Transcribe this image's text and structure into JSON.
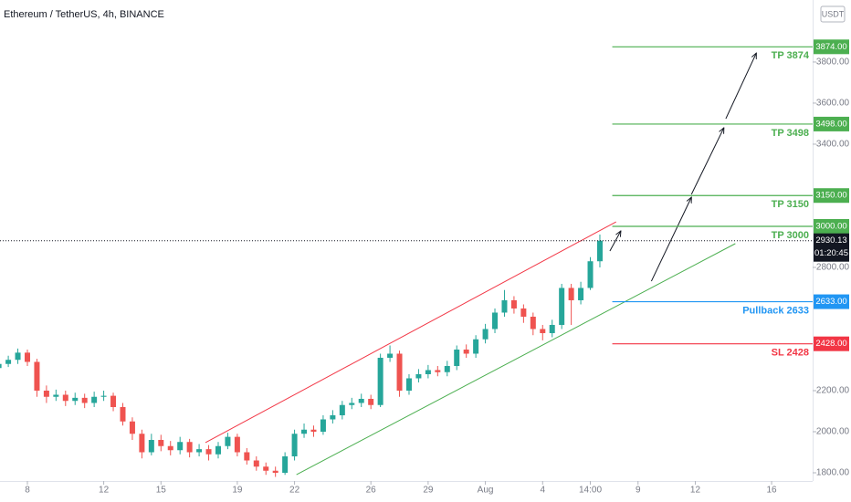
{
  "chart_data": {
    "type": "candlestick",
    "title": "Ethereum / TetherUS, 4h, BINANCE",
    "currency": "USDT",
    "up_color": "#26a69a",
    "down_color": "#ef5350",
    "xlim": [
      -2.87,
      82.3
    ],
    "ylim": [
      1760,
      4102
    ],
    "xticks": [
      {
        "value": 0,
        "label": "8"
      },
      {
        "value": 8,
        "label": "12"
      },
      {
        "value": 14,
        "label": "15"
      },
      {
        "value": 22,
        "label": "19"
      },
      {
        "value": 28,
        "label": "22"
      },
      {
        "value": 36,
        "label": "26"
      },
      {
        "value": 42,
        "label": "29"
      },
      {
        "value": 48,
        "label": "Aug"
      },
      {
        "value": 54,
        "label": "4"
      },
      {
        "value": 59,
        "label": "14:00"
      },
      {
        "value": 64,
        "label": "9"
      },
      {
        "value": 70,
        "label": "12"
      },
      {
        "value": 78,
        "label": "16"
      }
    ],
    "yticks": [
      {
        "value": 1800,
        "label": "1800.00"
      },
      {
        "value": 2000,
        "label": "2000.00"
      },
      {
        "value": 2200,
        "label": "2200.00"
      },
      {
        "value": 2800,
        "label": "2800.00"
      },
      {
        "value": 3400,
        "label": "3400.00"
      },
      {
        "value": 3600,
        "label": "3600.00"
      },
      {
        "value": 3800,
        "label": "3800.00"
      }
    ],
    "x": [
      -3,
      -2,
      -1,
      0,
      1,
      2,
      3,
      4,
      5,
      6,
      7,
      8,
      9,
      10,
      11,
      12,
      13,
      14,
      15,
      16,
      17,
      18,
      19,
      20,
      21,
      22,
      23,
      24,
      25,
      26,
      27,
      28,
      29,
      30,
      31,
      32,
      33,
      34,
      35,
      36,
      37,
      38,
      39,
      40,
      41,
      42,
      43,
      44,
      45,
      46,
      47,
      48,
      49,
      50,
      51,
      52,
      53,
      54,
      55,
      56,
      57,
      58,
      59,
      60
    ],
    "open": [
      2310,
      2330,
      2350,
      2385,
      2340,
      2200,
      2170,
      2180,
      2150,
      2165,
      2140,
      2170,
      2175,
      2120,
      2050,
      1990,
      1900,
      1960,
      1930,
      1910,
      1950,
      1900,
      1915,
      1890,
      1930,
      1975,
      1900,
      1860,
      1830,
      1810,
      1800,
      1880,
      1990,
      2010,
      2000,
      2060,
      2080,
      2130,
      2140,
      2160,
      2130,
      2360,
      2380,
      2200,
      2260,
      2280,
      2300,
      2290,
      2320,
      2400,
      2380,
      2450,
      2500,
      2580,
      2640,
      2600,
      2560,
      2500,
      2480,
      2520,
      2700,
      2640,
      2700,
      2830
    ],
    "high": [
      2355,
      2370,
      2405,
      2400,
      2355,
      2225,
      2205,
      2200,
      2190,
      2185,
      2195,
      2200,
      2190,
      2140,
      2070,
      2010,
      1990,
      1985,
      1955,
      1975,
      1965,
      1940,
      1935,
      1950,
      1995,
      1990,
      1920,
      1880,
      1850,
      1830,
      1900,
      2010,
      2040,
      2030,
      2080,
      2105,
      2150,
      2165,
      2185,
      2180,
      2380,
      2420,
      2395,
      2280,
      2305,
      2325,
      2320,
      2345,
      2420,
      2425,
      2470,
      2525,
      2600,
      2690,
      2660,
      2620,
      2580,
      2520,
      2545,
      2720,
      2720,
      2730,
      2850,
      2960
    ],
    "low": [
      2290,
      2315,
      2330,
      2320,
      2170,
      2140,
      2150,
      2125,
      2130,
      2115,
      2120,
      2150,
      2100,
      2030,
      1960,
      1870,
      1885,
      1905,
      1885,
      1890,
      1875,
      1880,
      1860,
      1870,
      1915,
      1880,
      1840,
      1810,
      1790,
      1780,
      1790,
      1860,
      1970,
      1975,
      1985,
      2040,
      2060,
      2110,
      2120,
      2110,
      2120,
      2340,
      2170,
      2180,
      2240,
      2260,
      2270,
      2270,
      2300,
      2360,
      2360,
      2430,
      2480,
      2560,
      2575,
      2530,
      2470,
      2445,
      2460,
      2500,
      2520,
      2620,
      2690,
      2800
    ],
    "close": [
      2330,
      2350,
      2385,
      2340,
      2200,
      2170,
      2180,
      2150,
      2165,
      2140,
      2170,
      2175,
      2120,
      2050,
      1990,
      1900,
      1960,
      1930,
      1910,
      1950,
      1900,
      1915,
      1890,
      1930,
      1975,
      1900,
      1860,
      1830,
      1810,
      1800,
      1880,
      1990,
      2010,
      2000,
      2060,
      2080,
      2130,
      2140,
      2160,
      2130,
      2360,
      2380,
      2200,
      2260,
      2280,
      2300,
      2290,
      2320,
      2400,
      2380,
      2450,
      2500,
      2580,
      2640,
      2600,
      2560,
      2500,
      2480,
      2520,
      2700,
      2640,
      2700,
      2830,
      2930.13
    ],
    "last_price": {
      "value": 2930.13,
      "label": "2930.13",
      "countdown": "01:20:45"
    },
    "levels": [
      {
        "label": "TP 3874",
        "value": 3874,
        "value_label": "3874.00",
        "color": "#4caf50"
      },
      {
        "label": "TP 3498",
        "value": 3498,
        "value_label": "3498.00",
        "color": "#4caf50"
      },
      {
        "label": "TP 3150",
        "value": 3150,
        "value_label": "3150.00",
        "color": "#4caf50"
      },
      {
        "label": "TP 3000",
        "value": 3000,
        "value_label": "3000.00",
        "color": "#4caf50"
      },
      {
        "label": "Pullback 2633",
        "value": 2633,
        "value_label": "2633.00",
        "color": "#2196f3"
      },
      {
        "label": "SL 2428",
        "value": 2428,
        "value_label": "2428.00",
        "color": "#f23645"
      }
    ],
    "level_start": 61.3,
    "channel": [
      {
        "color": "#f23645",
        "x": [
          18.66,
          61.7
        ],
        "y": [
          1947,
          3022
        ]
      },
      {
        "color": "#4caf50",
        "x": [
          28.2,
          74.2
        ],
        "y": [
          1791,
          2916
        ]
      }
    ],
    "arrows": [
      {
        "x": [
          61.05,
          62.2
        ],
        "y": [
          2880,
          2978
        ]
      },
      {
        "x": [
          65.4,
          69.6
        ],
        "y": [
          2733,
          3142
        ]
      },
      {
        "x": [
          69.6,
          73.0
        ],
        "y": [
          3156,
          3480
        ]
      },
      {
        "x": [
          73.2,
          76.4
        ],
        "y": [
          3524,
          3844
        ]
      }
    ]
  }
}
